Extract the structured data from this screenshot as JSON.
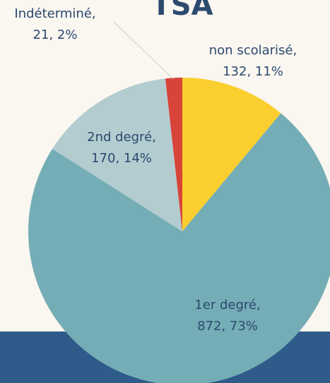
{
  "chart_data": {
    "type": "pie",
    "title": "TSA",
    "categories": [
      "non scolarisé,",
      "1er degré,",
      "2nd degré,",
      "Indéterminé,"
    ],
    "values": [
      132,
      872,
      170,
      21
    ],
    "value_labels": [
      "132, 11%",
      "872, 73%",
      "170, 14%",
      "21, 2%"
    ],
    "colors": [
      "#fbcf2f",
      "#74adb5",
      "#b3ccd0",
      "#d8433a"
    ]
  }
}
